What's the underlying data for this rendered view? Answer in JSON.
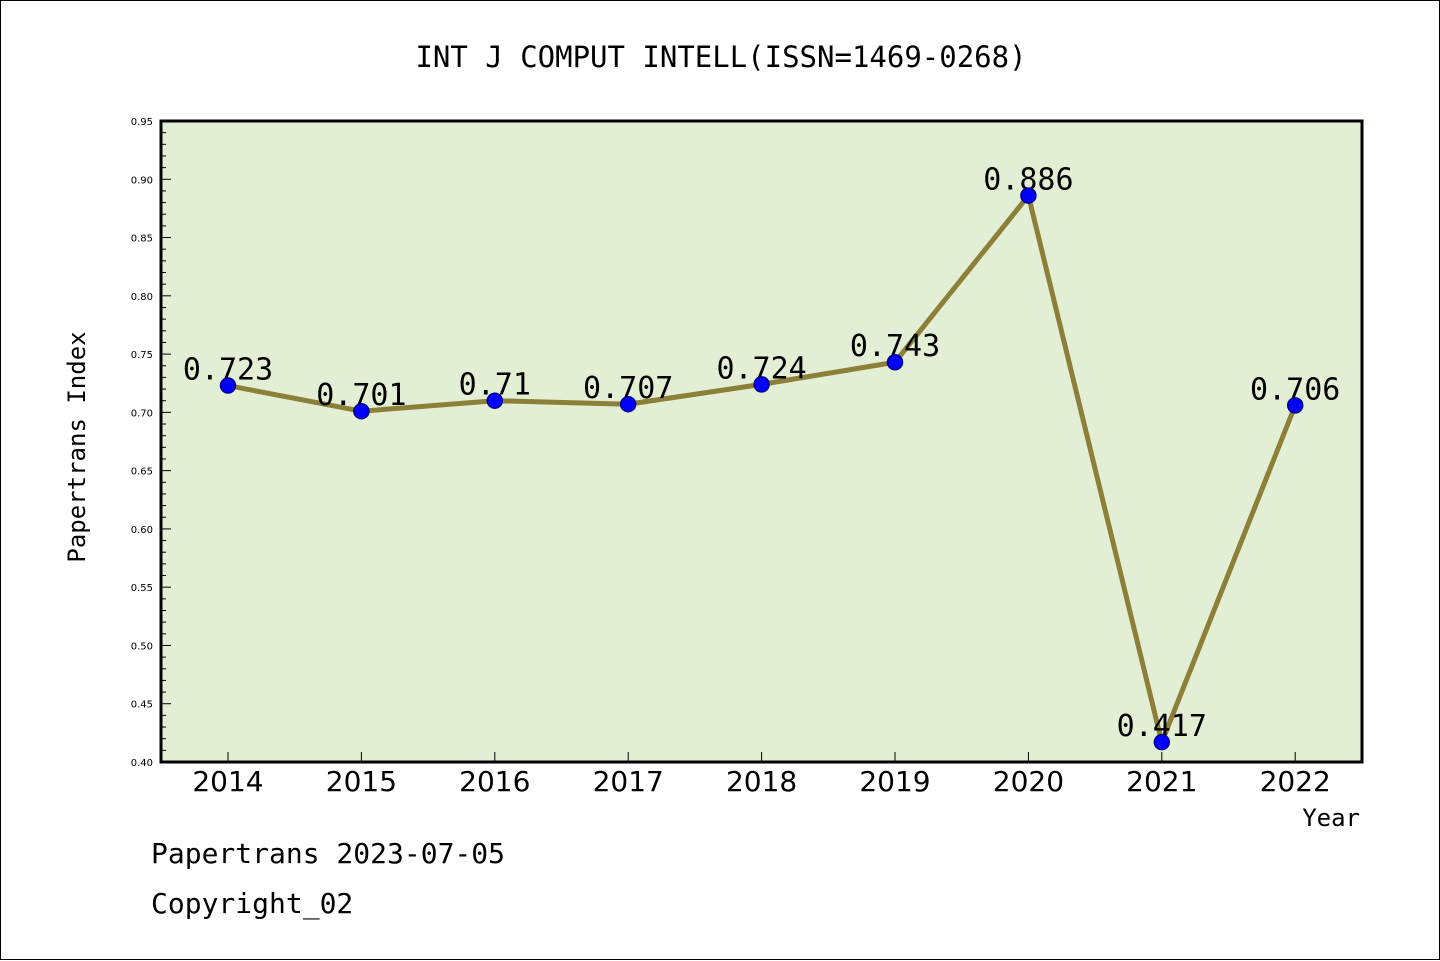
{
  "chart_data": {
    "type": "line",
    "title": "INT J COMPUT INTELL(ISSN=1469-0268)",
    "xlabel": "Year",
    "ylabel": "Papertrans Index",
    "categories": [
      "2014",
      "2015",
      "2016",
      "2017",
      "2018",
      "2019",
      "2020",
      "2021",
      "2022"
    ],
    "series": [
      {
        "values": [
          0.723,
          0.701,
          0.71,
          0.707,
          0.724,
          0.743,
          0.886,
          0.417,
          0.706
        ]
      }
    ],
    "data_labels": [
      "0.723",
      "0.701",
      "0.71",
      "0.707",
      "0.724",
      "0.743",
      "0.886",
      "0.417",
      "0.706"
    ],
    "ylim": [
      0.4,
      0.95
    ],
    "yticks": [
      "0.40",
      "0.45",
      "0.50",
      "0.55",
      "0.60",
      "0.65",
      "0.70",
      "0.75",
      "0.80",
      "0.85",
      "0.90",
      "0.95"
    ],
    "grid": false,
    "legend": "none",
    "colors": {
      "plot_background": "#e2efd4",
      "line": "#8c7f37",
      "marker": "#0000ff",
      "marker_edge": "#00008b"
    }
  },
  "footer": {
    "line1": "Papertrans 2023-07-05",
    "line2": "Copyright_02"
  }
}
